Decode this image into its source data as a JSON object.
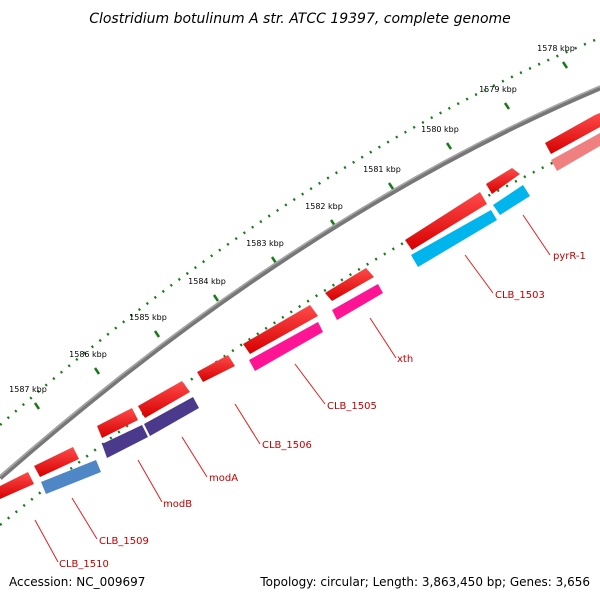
{
  "title": "Clostridium botulinum A str. ATCC 19397, complete genome",
  "footer": {
    "accession": "Accession: NC_009697",
    "summary": "Topology: circular; Length: 3,863,450 bp; Genes: 3,656"
  },
  "ruler": {
    "labels": [
      "1578 kbp",
      "1579 kbp",
      "1580 kbp",
      "1581 kbp",
      "1582 kbp",
      "1583 kbp",
      "1584 kbp",
      "1585 kbp",
      "1586 kbp",
      "1587 kbp"
    ]
  },
  "gene_labels": [
    "pyrR-1",
    "CLB_1503",
    "xth",
    "CLB_1505",
    "CLB_1506",
    "modA",
    "modB",
    "CLB_1509",
    "CLB_1510"
  ],
  "colors": {
    "backbone": "#808080",
    "orf": "#ff0000",
    "orf_light": "#f08080",
    "cyan": "#00b4ec",
    "magenta": "#ff1493",
    "purple": "#4b3a8c",
    "steelblue": "#4f86c6",
    "tick": "#1a7a1a",
    "label": "#c00000"
  }
}
